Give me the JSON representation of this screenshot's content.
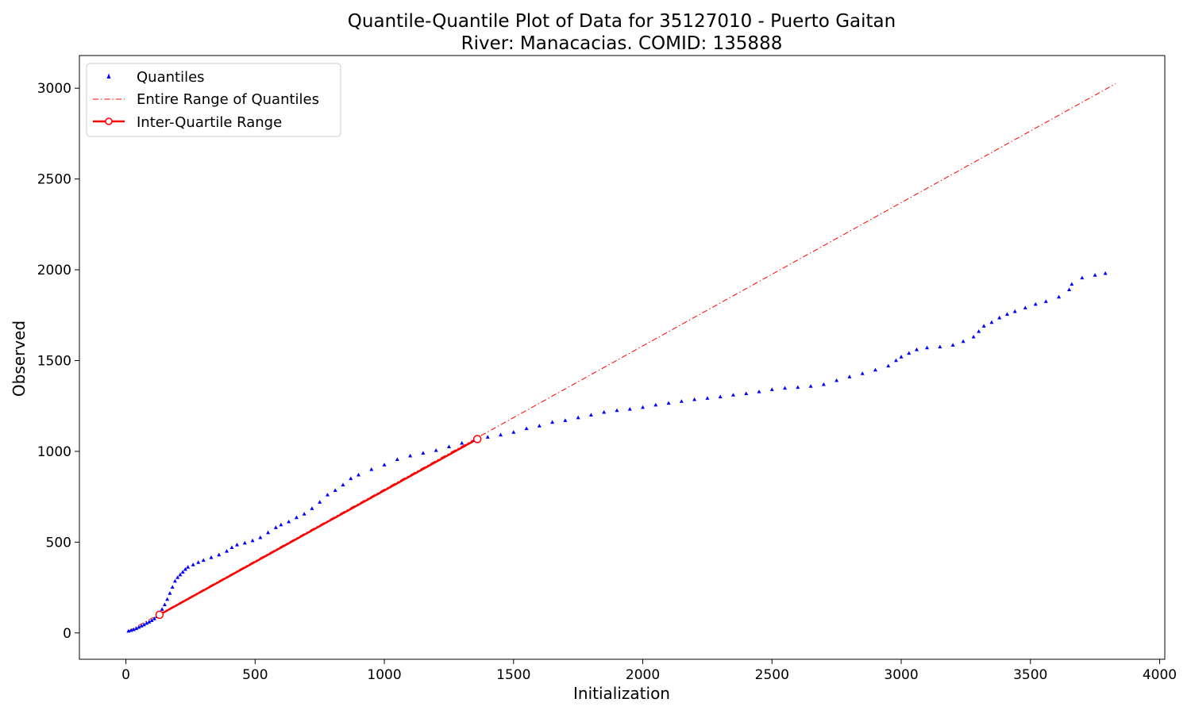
{
  "chart_data": {
    "type": "scatter",
    "title": "Quantile-Quantile Plot of Data for 35127010 - Puerto Gaitan",
    "subtitle": "River: Manacacias. COMID: 135888",
    "xlabel": "Initialization",
    "ylabel": "Observed",
    "xlim": [
      -180,
      4020
    ],
    "ylim": [
      -145,
      3180
    ],
    "xticks": [
      0,
      500,
      1000,
      1500,
      2000,
      2500,
      3000,
      3500,
      4000
    ],
    "yticks": [
      0,
      500,
      1000,
      1500,
      2000,
      2500,
      3000
    ],
    "grid": false,
    "legend_position": "top-left",
    "series": [
      {
        "name": "Quantiles",
        "kind": "points",
        "marker": "triangle",
        "color": "#0000ff",
        "points": [
          [
            10,
            10
          ],
          [
            20,
            14
          ],
          [
            30,
            18
          ],
          [
            40,
            24
          ],
          [
            50,
            31
          ],
          [
            60,
            38
          ],
          [
            70,
            45
          ],
          [
            80,
            53
          ],
          [
            90,
            60
          ],
          [
            100,
            68
          ],
          [
            110,
            78
          ],
          [
            120,
            90
          ],
          [
            130,
            108
          ],
          [
            140,
            130
          ],
          [
            150,
            155
          ],
          [
            160,
            185
          ],
          [
            170,
            218
          ],
          [
            180,
            252
          ],
          [
            190,
            285
          ],
          [
            200,
            305
          ],
          [
            210,
            320
          ],
          [
            220,
            335
          ],
          [
            230,
            350
          ],
          [
            240,
            362
          ],
          [
            260,
            375
          ],
          [
            280,
            388
          ],
          [
            300,
            400
          ],
          [
            330,
            415
          ],
          [
            360,
            430
          ],
          [
            390,
            450
          ],
          [
            410,
            470
          ],
          [
            430,
            485
          ],
          [
            460,
            495
          ],
          [
            490,
            508
          ],
          [
            520,
            525
          ],
          [
            550,
            552
          ],
          [
            580,
            580
          ],
          [
            600,
            595
          ],
          [
            630,
            612
          ],
          [
            660,
            635
          ],
          [
            690,
            655
          ],
          [
            720,
            685
          ],
          [
            750,
            720
          ],
          [
            780,
            760
          ],
          [
            810,
            785
          ],
          [
            840,
            815
          ],
          [
            870,
            850
          ],
          [
            900,
            870
          ],
          [
            950,
            900
          ],
          [
            1000,
            925
          ],
          [
            1050,
            955
          ],
          [
            1100,
            975
          ],
          [
            1150,
            990
          ],
          [
            1200,
            1005
          ],
          [
            1250,
            1025
          ],
          [
            1300,
            1045
          ],
          [
            1350,
            1060
          ],
          [
            1400,
            1078
          ],
          [
            1450,
            1090
          ],
          [
            1500,
            1105
          ],
          [
            1550,
            1125
          ],
          [
            1600,
            1140
          ],
          [
            1650,
            1160
          ],
          [
            1700,
            1170
          ],
          [
            1750,
            1185
          ],
          [
            1800,
            1200
          ],
          [
            1850,
            1215
          ],
          [
            1900,
            1225
          ],
          [
            1950,
            1232
          ],
          [
            2000,
            1242
          ],
          [
            2050,
            1255
          ],
          [
            2100,
            1265
          ],
          [
            2150,
            1275
          ],
          [
            2200,
            1285
          ],
          [
            2250,
            1292
          ],
          [
            2300,
            1300
          ],
          [
            2350,
            1310
          ],
          [
            2400,
            1318
          ],
          [
            2450,
            1328
          ],
          [
            2500,
            1340
          ],
          [
            2550,
            1348
          ],
          [
            2600,
            1352
          ],
          [
            2650,
            1358
          ],
          [
            2700,
            1368
          ],
          [
            2750,
            1390
          ],
          [
            2800,
            1410
          ],
          [
            2850,
            1428
          ],
          [
            2900,
            1448
          ],
          [
            2950,
            1470
          ],
          [
            2980,
            1500
          ],
          [
            3000,
            1520
          ],
          [
            3030,
            1540
          ],
          [
            3060,
            1560
          ],
          [
            3100,
            1570
          ],
          [
            3150,
            1575
          ],
          [
            3200,
            1585
          ],
          [
            3240,
            1605
          ],
          [
            3280,
            1630
          ],
          [
            3300,
            1660
          ],
          [
            3320,
            1690
          ],
          [
            3350,
            1710
          ],
          [
            3380,
            1735
          ],
          [
            3410,
            1755
          ],
          [
            3440,
            1770
          ],
          [
            3480,
            1790
          ],
          [
            3520,
            1810
          ],
          [
            3560,
            1825
          ],
          [
            3610,
            1850
          ],
          [
            3650,
            1890
          ],
          [
            3660,
            1920
          ],
          [
            3700,
            1955
          ],
          [
            3750,
            1970
          ],
          [
            3790,
            1980
          ]
        ]
      },
      {
        "name": "Entire Range of Quantiles",
        "kind": "dashdot-line",
        "color": "#ff0000",
        "points": [
          [
            10,
            10
          ],
          [
            3830,
            3025
          ]
        ]
      },
      {
        "name": "Inter-Quartile Range",
        "kind": "line-with-circle-markers",
        "color": "#ff0000",
        "points": [
          [
            130,
            100
          ],
          [
            1360,
            1068
          ]
        ]
      }
    ]
  }
}
